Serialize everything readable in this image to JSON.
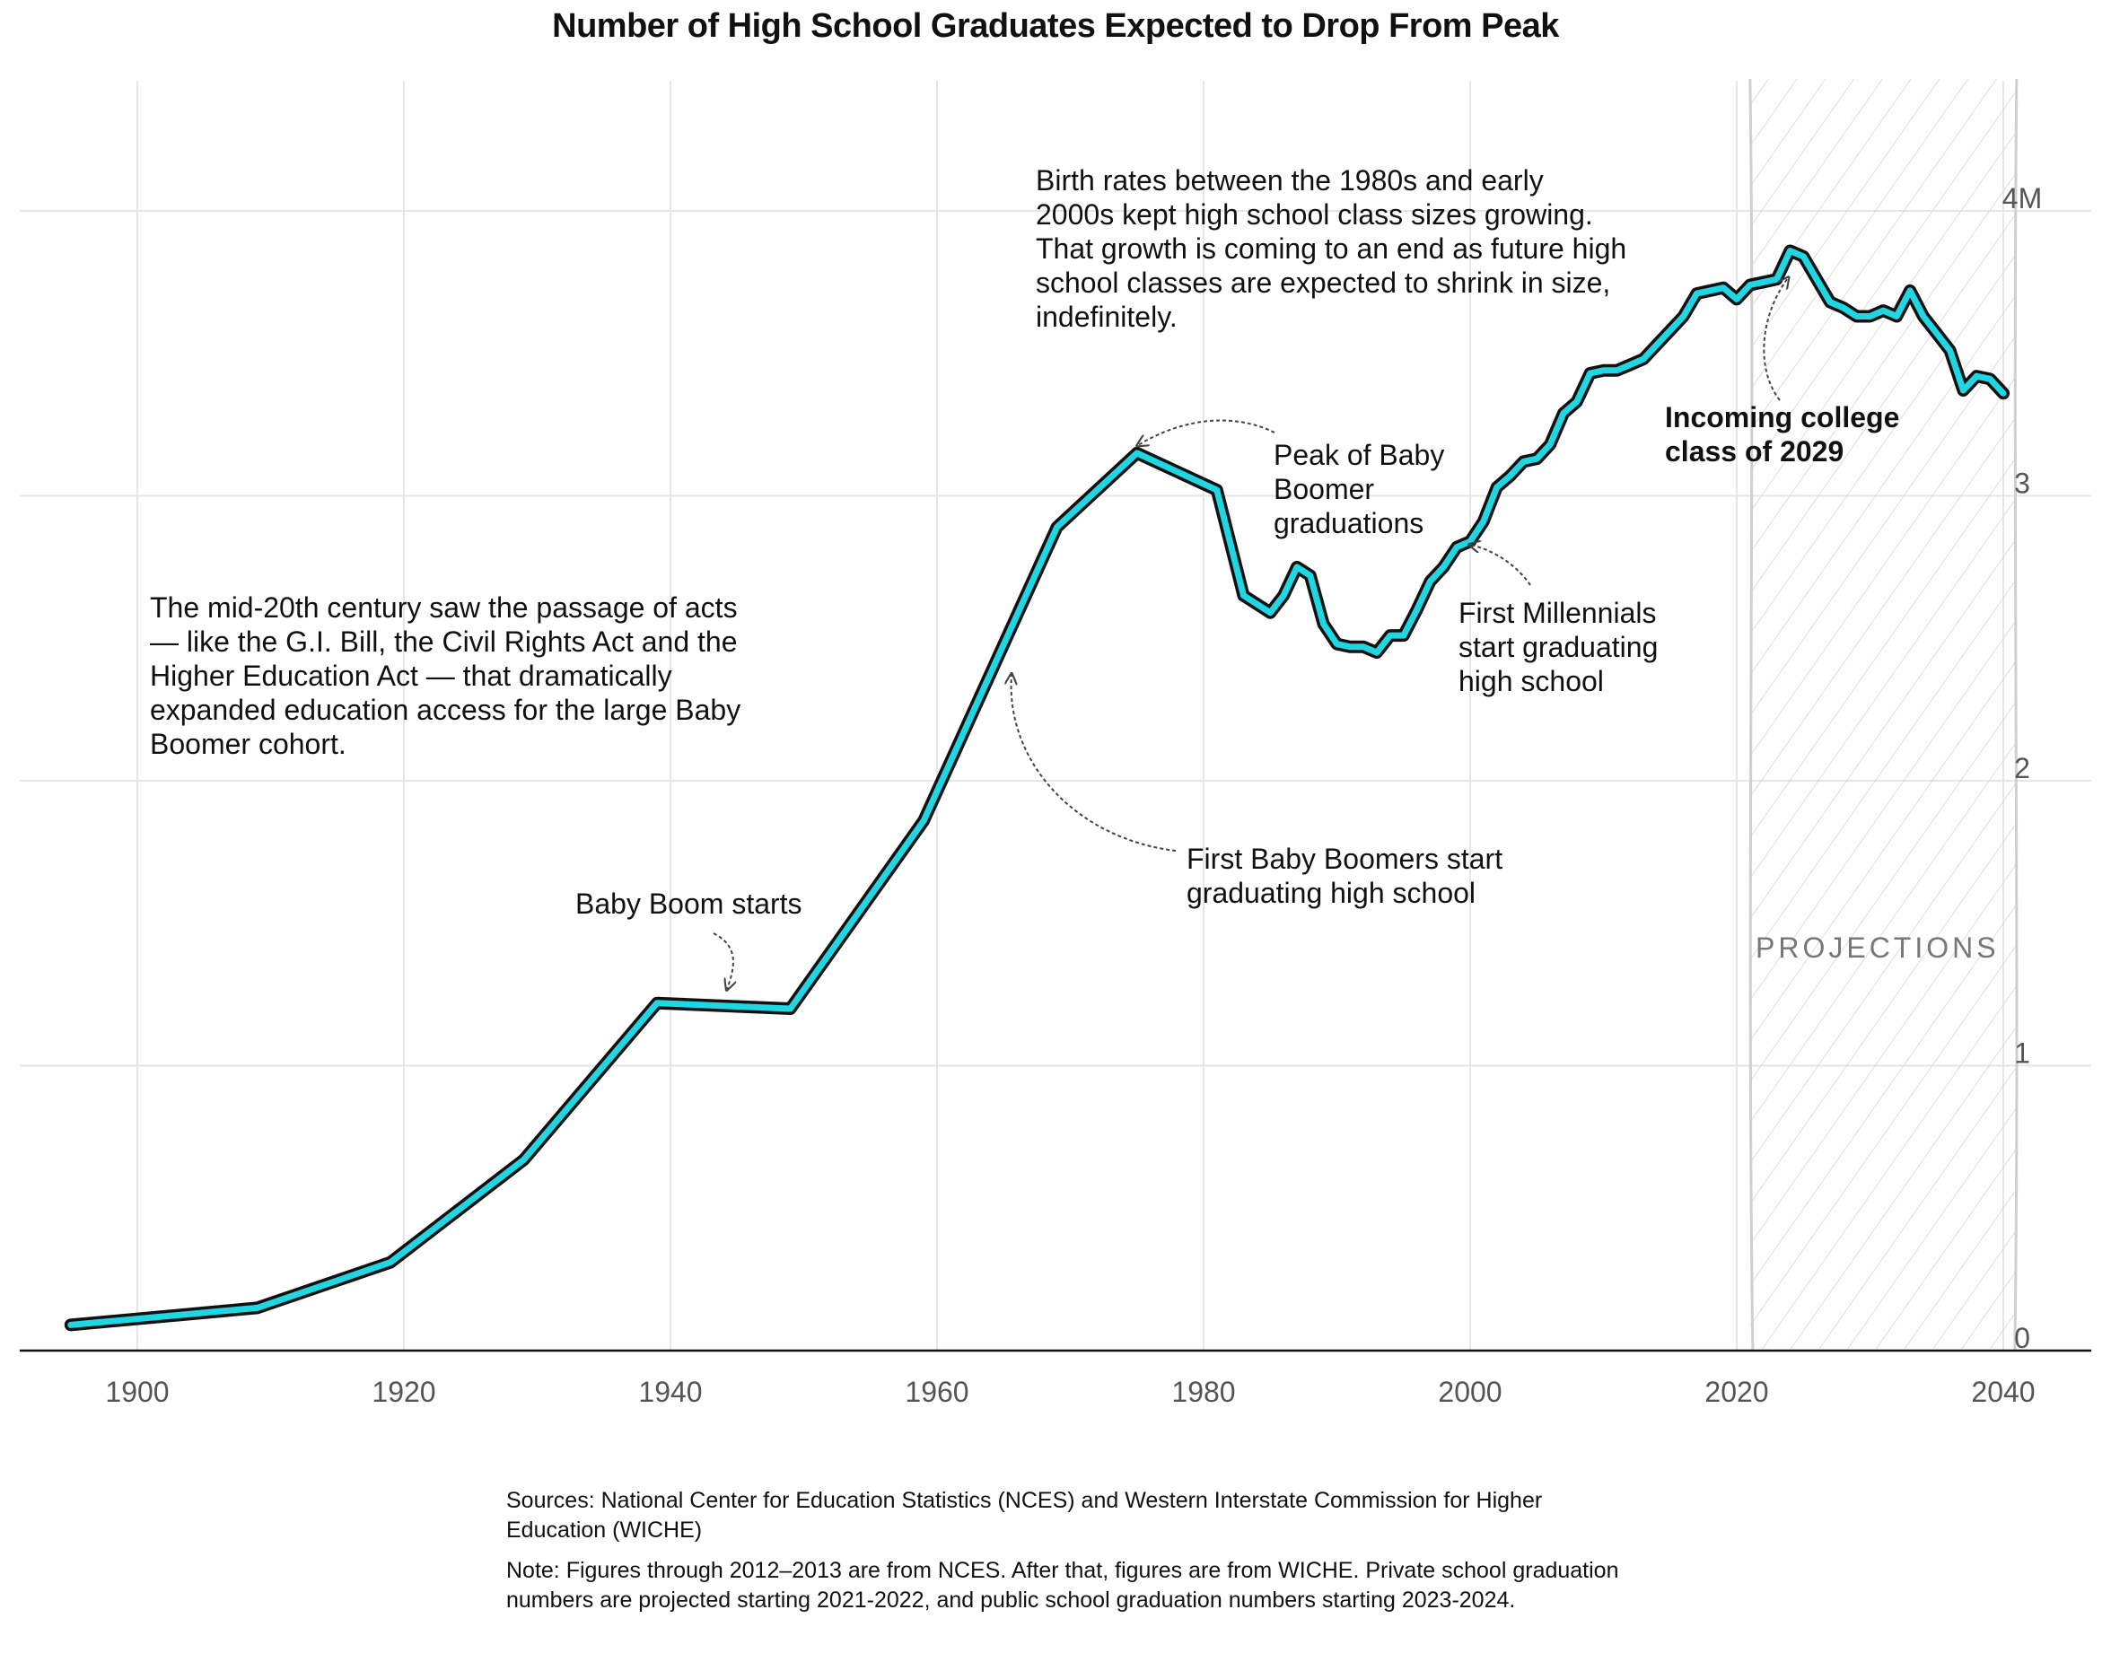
{
  "chart_data": {
    "type": "line",
    "title": "Number of High School Graduates Expected to Drop From Peak",
    "xlabel": "",
    "ylabel": "",
    "xlim": [
      1891,
      2044
    ],
    "ylim": [
      0,
      4.5
    ],
    "x_ticks": [
      1900,
      1920,
      1940,
      1960,
      1980,
      2000,
      2020,
      2040
    ],
    "x_tick_labels": [
      "1900",
      "1920",
      "1940",
      "1960",
      "1980",
      "2000",
      "2020",
      "2040"
    ],
    "y_ticks": [
      0,
      1,
      2,
      3,
      4
    ],
    "y_tick_labels": [
      "0",
      "1",
      "2",
      "3",
      "4M"
    ],
    "grid": true,
    "legend": "none",
    "line_color": "#1fd6e3",
    "outline_color": "#111111",
    "projection_start": 2021,
    "projection_end": 2041,
    "projection_label": "PROJECTIONS",
    "series": [
      {
        "x": [
          1895,
          1909,
          1919,
          1929,
          1939,
          1949,
          1959,
          1969,
          1975,
          1981,
          1983,
          1985,
          1986,
          1987,
          1988,
          1989,
          1990,
          1991,
          1992,
          1993,
          1994,
          1995,
          1996,
          1997,
          1998,
          1999,
          2000,
          2001,
          2002,
          2003,
          2004,
          2005,
          2006,
          2007,
          2008,
          2009,
          2010,
          2011,
          2012,
          2013,
          2014,
          2015,
          2016,
          2017,
          2018,
          2019,
          2020,
          2021,
          2022,
          2023,
          2024,
          2025,
          2026,
          2027,
          2028,
          2029,
          2030,
          2031,
          2032,
          2033,
          2034,
          2035,
          2036,
          2037,
          2038,
          2039,
          2040
        ],
        "values": [
          0.09,
          0.15,
          0.31,
          0.67,
          1.22,
          1.2,
          1.86,
          2.89,
          3.15,
          3.02,
          2.65,
          2.59,
          2.65,
          2.75,
          2.72,
          2.55,
          2.48,
          2.47,
          2.47,
          2.45,
          2.51,
          2.51,
          2.6,
          2.7,
          2.75,
          2.82,
          2.84,
          2.91,
          3.03,
          3.07,
          3.12,
          3.13,
          3.18,
          3.29,
          3.33,
          3.43,
          3.44,
          3.44,
          3.46,
          3.48,
          3.53,
          3.58,
          3.63,
          3.71,
          3.72,
          3.73,
          3.69,
          3.74,
          3.75,
          3.76,
          3.86,
          3.84,
          3.76,
          3.68,
          3.66,
          3.63,
          3.63,
          3.65,
          3.63,
          3.72,
          3.63,
          3.57,
          3.51,
          3.37,
          3.42,
          3.41,
          3.36
        ]
      }
    ],
    "annotations": [
      "Birth rates between the 1980s and early 2000s kept high school class sizes growing. That growth is coming to an end as future high school classes are expected to shrink in size, indefinitely.",
      "Peak of Baby Boomer graduations",
      "First Millennials start graduating high school",
      "Incoming college class of 2029",
      "The mid-20th century saw the passage of acts — like the G.I. Bill, the Civil Rights Act and the Higher Education Act — that dramatically expanded education access for the large Baby Boomer cohort.",
      "First Baby Boomers start graduating high school",
      "Baby Boom starts"
    ]
  },
  "footer": {
    "sources": "Sources: National Center for Education Statistics (NCES) and Western Interstate Commission for Higher Education (WICHE)",
    "note": "Note: Figures through 2012–2013 are from NCES. After that, figures are from WICHE. Private school graduation numbers are projected starting 2021-2022, and public school graduation numbers starting 2023-2024."
  }
}
